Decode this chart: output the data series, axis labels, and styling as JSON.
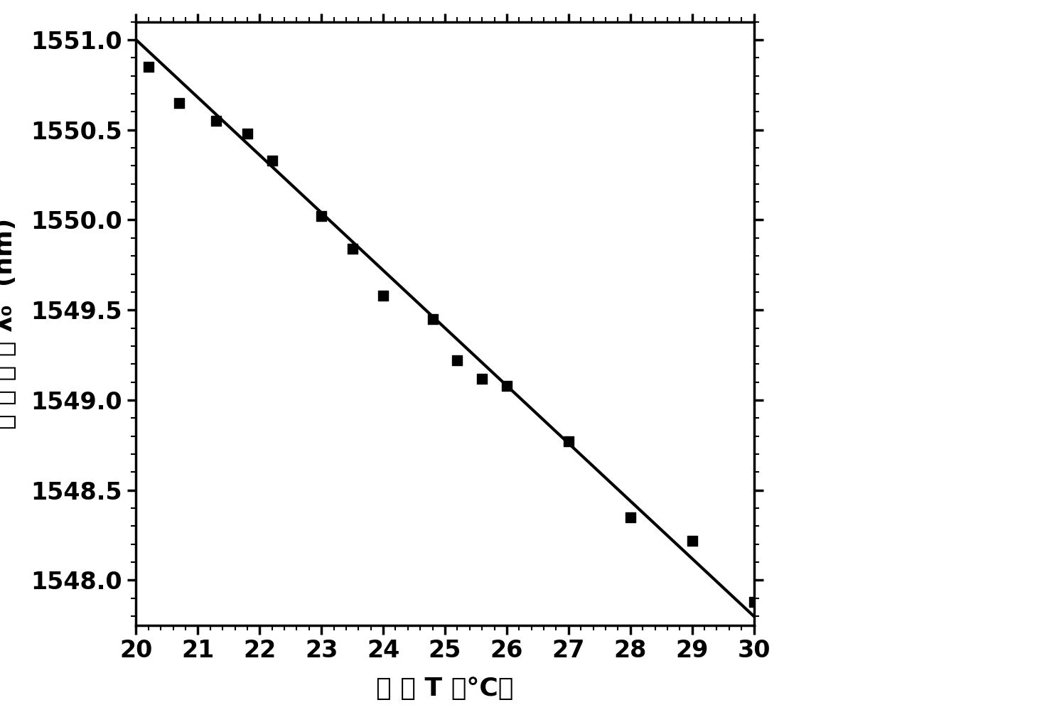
{
  "x_data": [
    20.2,
    20.7,
    21.3,
    21.8,
    22.2,
    23.0,
    23.5,
    24.0,
    24.8,
    25.2,
    25.6,
    26.0,
    27.0,
    28.0,
    29.0,
    30.0
  ],
  "y_data": [
    1550.85,
    1550.65,
    1550.55,
    1550.48,
    1550.33,
    1550.02,
    1549.84,
    1549.58,
    1549.45,
    1549.22,
    1549.12,
    1549.08,
    1548.77,
    1548.35,
    1548.22,
    1547.88
  ],
  "line_x": [
    20.0,
    30.0
  ],
  "line_y": [
    1551.0,
    1547.8
  ],
  "xlim": [
    20,
    30
  ],
  "ylim": [
    1547.75,
    1551.1
  ],
  "xticks": [
    20,
    21,
    22,
    23,
    24,
    25,
    26,
    27,
    28,
    29,
    30
  ],
  "yticks": [
    1548.0,
    1548.5,
    1549.0,
    1549.5,
    1550.0,
    1550.5,
    1551.0
  ],
  "xlabel": "温 度 T （°C）",
  "ylabel": "中 心 波 长 λ₀  (nm)",
  "marker_color": "#000000",
  "line_color": "#000000",
  "bg_color": "#ffffff",
  "tick_fontsize": 24,
  "label_fontsize": 26,
  "marker_size": 100,
  "linewidth": 3.0,
  "spine_linewidth": 2.5
}
